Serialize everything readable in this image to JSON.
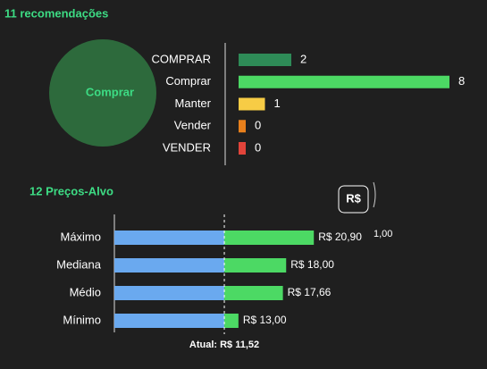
{
  "header": {
    "title": "11 recomendações"
  },
  "consensus": {
    "label": "Comprar"
  },
  "recommendations": [
    {
      "label": "COMPRAR",
      "value": 2,
      "color": "#2e8b57"
    },
    {
      "label": "Comprar",
      "value": 8,
      "color": "#4cd964"
    },
    {
      "label": "Manter",
      "value": 1,
      "color": "#f7cc45"
    },
    {
      "label": "Vender",
      "value": 0,
      "color": "#e8801c"
    },
    {
      "label": "VENDER",
      "value": 0,
      "color": "#e2443a"
    }
  ],
  "targets": {
    "title": "12 Preços-Alvo",
    "currency_button": "R$",
    "side_value": "1,00",
    "rows": [
      {
        "label": "Máximo",
        "value": 20.9,
        "value_label": "R$ 20,90"
      },
      {
        "label": "Mediana",
        "value": 18.0,
        "value_label": "R$ 18,00"
      },
      {
        "label": "Médio",
        "value": 17.66,
        "value_label": "R$ 17,66"
      },
      {
        "label": "Mínimo",
        "value": 13.0,
        "value_label": "R$ 13,00"
      }
    ],
    "current": {
      "value": 11.52,
      "label": "Atual: R$ 11,52"
    }
  }
}
